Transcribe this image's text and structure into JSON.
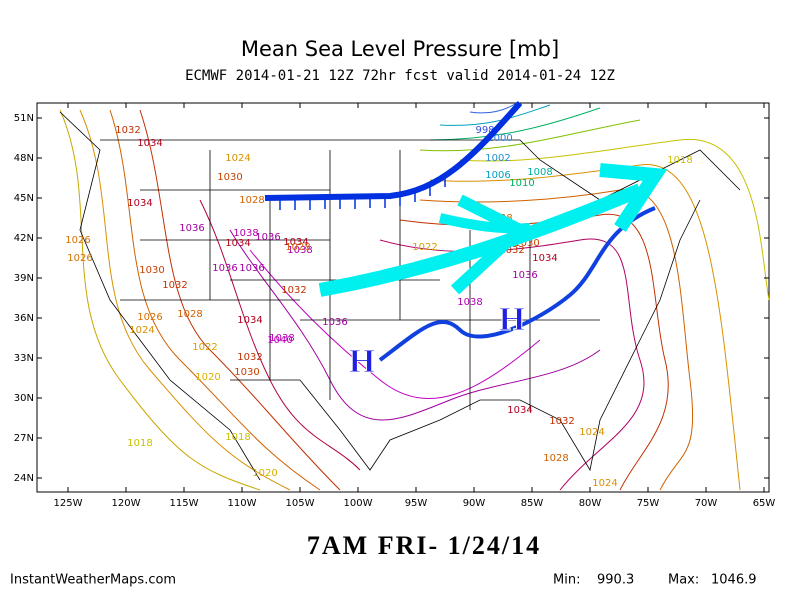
{
  "header": {
    "title": "Mean Sea Level Pressure [mb]",
    "subtitle": "ECMWF 2014-01-21 12Z 72hr fcst valid 2014-01-24 12Z"
  },
  "map": {
    "lat_labels": [
      "51N",
      "48N",
      "45N",
      "42N",
      "39N",
      "36N",
      "33N",
      "30N",
      "27N",
      "24N"
    ],
    "lon_labels": [
      "125W",
      "120W",
      "115W",
      "110W",
      "105W",
      "100W",
      "95W",
      "90W",
      "85W",
      "80W",
      "75W",
      "70W",
      "65W"
    ],
    "contour_labels": [
      "1032",
      "1034",
      "1024",
      "1030",
      "1028",
      "1034",
      "1036",
      "1038",
      "1034",
      "1026",
      "1030",
      "1032",
      "1028",
      "1026",
      "1024",
      "1022",
      "1020",
      "1032",
      "1034",
      "1036",
      "1040",
      "1036",
      "1038",
      "1036",
      "1038",
      "1036",
      "1034",
      "1032",
      "1030",
      "1028",
      "1026",
      "1022",
      "1028",
      "1030",
      "1032",
      "1034",
      "1036",
      "1038",
      "1018",
      "1018",
      "1020",
      "1018",
      "1024",
      "1028",
      "1032",
      "1034",
      "998",
      "1000",
      "1002",
      "1006",
      "1008",
      "1010",
      "1024"
    ],
    "highs": [
      "H",
      "H"
    ]
  },
  "caption": "7AM FRI- 1/24/14",
  "footer": {
    "source": "InstantWeatherMaps.com",
    "min_label": "Min:",
    "min": 990.3,
    "max_label": "Max:",
    "max": 1046.9
  }
}
